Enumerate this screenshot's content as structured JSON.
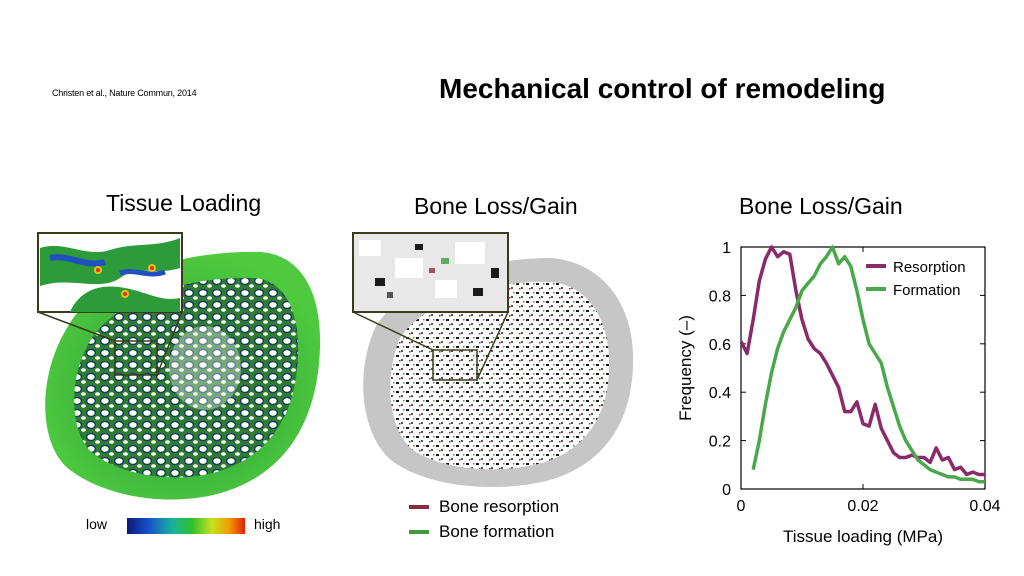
{
  "header": {
    "citation": "Christen et al., Nature Commun, 2014",
    "title": "Mechanical control of remodeling"
  },
  "panels": {
    "tissue_loading": {
      "title": "Tissue Loading",
      "colorbar": {
        "low_label": "low",
        "high_label": "high"
      }
    },
    "bone_loss_gain_map": {
      "title": "Bone Loss/Gain",
      "legend": [
        {
          "label": "Bone resorption",
          "color": "#8b2a3c"
        },
        {
          "label": "Bone formation",
          "color": "#3f9a3f"
        }
      ]
    },
    "bone_loss_gain_plot": {
      "title": "Bone Loss/Gain"
    }
  },
  "chart_data": {
    "type": "line",
    "xlabel": "Tissue loading (MPa)",
    "ylabel": "Frequency (–)",
    "xlim": [
      0,
      0.04
    ],
    "ylim": [
      0,
      1
    ],
    "xticks": [
      0,
      0.02,
      0.04
    ],
    "xtick_labels": [
      "0",
      "0.02",
      "0.04"
    ],
    "yticks": [
      0,
      0.2,
      0.4,
      0.6,
      0.8,
      1
    ],
    "ytick_labels": [
      "0",
      "0.2",
      "0.4",
      "0.6",
      "0.8",
      "1"
    ],
    "legend_position": "top-right",
    "grid": false,
    "series": [
      {
        "name": "Resorption",
        "color": "#8b2a6a",
        "x": [
          0,
          0.001,
          0.002,
          0.003,
          0.004,
          0.005,
          0.006,
          0.007,
          0.008,
          0.009,
          0.01,
          0.011,
          0.012,
          0.013,
          0.014,
          0.015,
          0.016,
          0.017,
          0.018,
          0.019,
          0.02,
          0.021,
          0.022,
          0.023,
          0.024,
          0.025,
          0.026,
          0.027,
          0.028,
          0.029,
          0.03,
          0.031,
          0.032,
          0.033,
          0.034,
          0.035,
          0.036,
          0.037,
          0.038,
          0.039,
          0.04
        ],
        "values": [
          0.61,
          0.56,
          0.7,
          0.86,
          0.95,
          1.0,
          0.96,
          0.98,
          0.97,
          0.82,
          0.7,
          0.62,
          0.58,
          0.56,
          0.52,
          0.47,
          0.42,
          0.32,
          0.32,
          0.36,
          0.27,
          0.26,
          0.35,
          0.25,
          0.2,
          0.15,
          0.13,
          0.13,
          0.14,
          0.13,
          0.13,
          0.11,
          0.17,
          0.12,
          0.13,
          0.08,
          0.09,
          0.06,
          0.07,
          0.06,
          0.06
        ]
      },
      {
        "name": "Formation",
        "color": "#4aa84a",
        "x": [
          0.002,
          0.003,
          0.004,
          0.005,
          0.006,
          0.007,
          0.008,
          0.009,
          0.01,
          0.011,
          0.012,
          0.013,
          0.014,
          0.015,
          0.016,
          0.017,
          0.018,
          0.019,
          0.02,
          0.021,
          0.022,
          0.023,
          0.024,
          0.025,
          0.026,
          0.027,
          0.028,
          0.029,
          0.03,
          0.031,
          0.032,
          0.033,
          0.034,
          0.035,
          0.036,
          0.037,
          0.038,
          0.039,
          0.04
        ],
        "values": [
          0.08,
          0.2,
          0.35,
          0.48,
          0.58,
          0.65,
          0.7,
          0.75,
          0.82,
          0.85,
          0.88,
          0.93,
          0.96,
          1.0,
          0.93,
          0.96,
          0.92,
          0.82,
          0.7,
          0.6,
          0.56,
          0.52,
          0.42,
          0.34,
          0.26,
          0.2,
          0.16,
          0.12,
          0.1,
          0.08,
          0.07,
          0.06,
          0.05,
          0.05,
          0.04,
          0.04,
          0.04,
          0.03,
          0.03
        ]
      }
    ]
  }
}
